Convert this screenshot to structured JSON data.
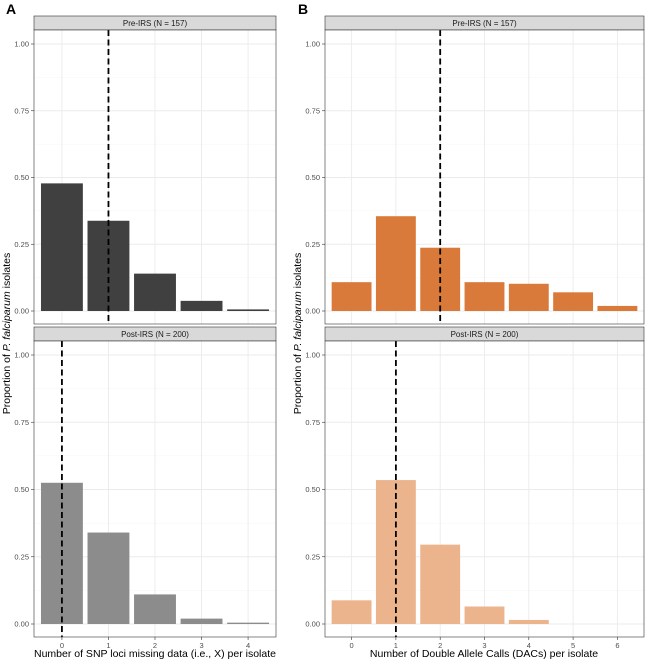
{
  "figure": {
    "panel_a_label": "A",
    "panel_b_label": "B"
  },
  "chart_data": [
    {
      "type": "bar",
      "panel": "A",
      "xlabel": "Number of SNP loci missing data (i.e., X) per isolate",
      "ylabel_prefix": "Proportion of ",
      "ylabel_italic": "P. falciparum",
      "ylabel_suffix": " isolates",
      "categories": [
        "0",
        "1",
        "2",
        "3",
        "4"
      ],
      "ylim": [
        0,
        1
      ],
      "yticks": [
        "0.00",
        "0.25",
        "0.50",
        "0.75",
        "1.00"
      ],
      "facets": [
        {
          "label": "Pre-IRS (N = 157)",
          "values": [
            0.478,
            0.338,
            0.14,
            0.038,
            0.006
          ],
          "color": "#404040",
          "vline": 1
        },
        {
          "label": "Post-IRS (N = 200)",
          "values": [
            0.525,
            0.34,
            0.11,
            0.02,
            0.005
          ],
          "color": "#8c8c8c",
          "vline": 0
        }
      ]
    },
    {
      "type": "bar",
      "panel": "B",
      "xlabel": "Number of Double Allele Calls (DACs) per isolate",
      "ylabel_prefix": "Proportion of ",
      "ylabel_italic": "P. falciparum",
      "ylabel_suffix": " isolates",
      "categories": [
        "0",
        "1",
        "2",
        "3",
        "4",
        "5",
        "6"
      ],
      "ylim": [
        0,
        1
      ],
      "yticks": [
        "0.00",
        "0.25",
        "0.50",
        "0.75",
        "1.00"
      ],
      "facets": [
        {
          "label": "Pre-IRS (N = 157)",
          "values": [
            0.108,
            0.355,
            0.237,
            0.108,
            0.102,
            0.07,
            0.019
          ],
          "color": "#d97a3b",
          "vline": 2
        },
        {
          "label": "Post-IRS (N = 200)",
          "values": [
            0.088,
            0.535,
            0.295,
            0.065,
            0.015,
            0,
            0
          ],
          "color": "#ebb48c",
          "vline": 1
        }
      ]
    }
  ]
}
